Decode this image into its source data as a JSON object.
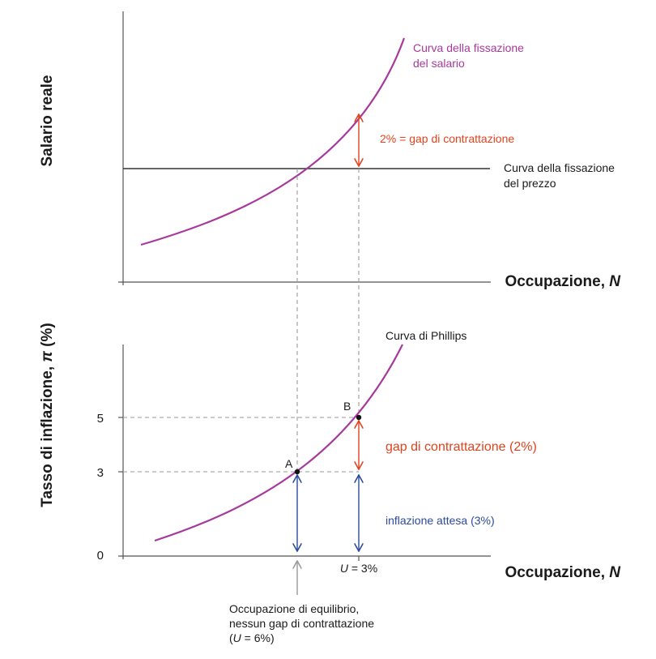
{
  "top_panel": {
    "y_axis_title": "Salario reale",
    "x_axis_title_text": "Occupazione, ",
    "x_axis_title_var": "N",
    "wage_curve_label": [
      "Curva della fissazione",
      "del salario"
    ],
    "price_curve_label": [
      "Curva della fissazione",
      "del prezzo"
    ],
    "gap_label": "2% = gap di contrattazione"
  },
  "bottom_panel": {
    "y_axis_title_text": "Tasso di inflazione, ",
    "y_axis_title_var": "π",
    "y_axis_title_unit": " (%)",
    "x_axis_title_text": "Occupazione, ",
    "x_axis_title_var": "N",
    "phillips_label": "Curva di Phillips",
    "point_a": "A",
    "point_b": "B",
    "gap_label": "gap di contrattazione (2%)",
    "expected_inflation_label": "inflazione attesa (3%)",
    "u_var": "U",
    "u_value": " = 3%",
    "equilibrium_label": [
      "Occupazione di equilibrio,",
      "nessun gap di contrattazione"
    ],
    "equilibrium_u_open": "(",
    "equilibrium_u_var": "U",
    "equilibrium_u_value": " = 6%)"
  },
  "chart_data": {
    "type": "line",
    "y_ticks": [
      "0",
      "3",
      "5"
    ],
    "points": [
      {
        "name": "A",
        "inflation": 3
      },
      {
        "name": "B",
        "inflation": 5
      }
    ]
  },
  "colors": {
    "curve": "#a7399c",
    "gap": "#e0431e",
    "expected": "#2b4a9e",
    "equilibrium_arrow": "#9a9a9a"
  }
}
